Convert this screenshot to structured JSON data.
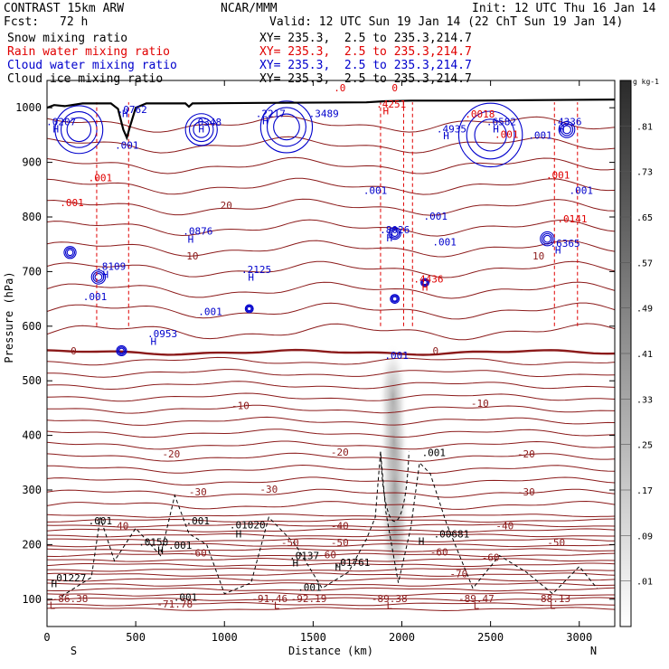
{
  "header": {
    "model": "CONTRAST 15km ARW",
    "center": "NCAR/MMM",
    "init": "Init: 12 UTC Thu 16 Jan 14",
    "fcst_label": "Fcst:",
    "fcst_value": "72 h",
    "valid": "Valid: 12 UTC Sun 19 Jan 14 (22 ChT Sun 19 Jan 14)"
  },
  "fields": [
    {
      "name": "Snow mixing ratio",
      "xy": "XY= 235.3,  2.5 to 235.3,214.7",
      "color": "#000000"
    },
    {
      "name": "Rain water mixing ratio",
      "xy": "XY= 235.3,  2.5 to 235.3,214.7",
      "color": "#e00000"
    },
    {
      "name": "Cloud water mixing ratio",
      "xy": "XY= 235.3,  2.5 to 235.3,214.7",
      "color": "#0000cc"
    },
    {
      "name": "Cloud ice mixing ratio",
      "xy": "XY= 235.3,  2.5 to 235.3,214.7",
      "color": "#000000"
    }
  ],
  "chart_data": {
    "type": "cross-section contour",
    "xlabel": "Distance (km)",
    "ylabel": "Pressure (hPa)",
    "xlim": [
      0,
      3200
    ],
    "ylim": [
      1050,
      50
    ],
    "x_ticks": [
      0,
      500,
      1000,
      1500,
      2000,
      2500,
      3000
    ],
    "y_ticks": [
      100,
      200,
      300,
      400,
      500,
      600,
      700,
      800,
      900,
      1000
    ],
    "x_end_labels": {
      "left": "S",
      "right": "N"
    },
    "temperature_contours": {
      "color": "#8b1a1a",
      "levels": [
        -70,
        -60,
        -50,
        -40,
        -30,
        -20,
        -10,
        0,
        10,
        20
      ],
      "labels": [
        {
          "text": "-70",
          "x": 2320,
          "p": 140
        },
        {
          "text": "-60",
          "x": 850,
          "p": 178
        },
        {
          "text": "-60",
          "x": 1580,
          "p": 175
        },
        {
          "text": "-60",
          "x": 2210,
          "p": 180
        },
        {
          "text": "-60",
          "x": 2500,
          "p": 170
        },
        {
          "text": "-50",
          "x": 1370,
          "p": 197
        },
        {
          "text": "-50",
          "x": 1650,
          "p": 197
        },
        {
          "text": "-50",
          "x": 2870,
          "p": 197
        },
        {
          "text": "-40",
          "x": 410,
          "p": 228
        },
        {
          "text": "-40",
          "x": 1650,
          "p": 228
        },
        {
          "text": "-40",
          "x": 2580,
          "p": 228
        },
        {
          "text": "-30",
          "x": 850,
          "p": 290
        },
        {
          "text": "-30",
          "x": 1250,
          "p": 295
        },
        {
          "text": "-30",
          "x": 2700,
          "p": 290
        },
        {
          "text": "-20",
          "x": 700,
          "p": 360
        },
        {
          "text": "-20",
          "x": 1650,
          "p": 363
        },
        {
          "text": "-20",
          "x": 2700,
          "p": 360
        },
        {
          "text": "-10",
          "x": 1090,
          "p": 448
        },
        {
          "text": "-10",
          "x": 2440,
          "p": 452
        },
        {
          "text": "0",
          "x": 150,
          "p": 548
        },
        {
          "text": "0",
          "x": 2190,
          "p": 548
        },
        {
          "text": "10",
          "x": 820,
          "p": 722
        },
        {
          "text": "10",
          "x": 2770,
          "p": 722
        },
        {
          "text": "20",
          "x": 1010,
          "p": 815
        }
      ]
    },
    "minima_labels": [
      {
        "text": "L",
        "x": 30,
        "p": 82
      },
      {
        "text": "-86.38",
        "x": 130,
        "p": 95
      },
      {
        "text": "-71.78",
        "x": 720,
        "p": 85
      },
      {
        "text": "L",
        "x": 1295,
        "p": 82
      },
      {
        "text": "-91.46",
        "x": 1255,
        "p": 95
      },
      {
        "text": "-92.19",
        "x": 1475,
        "p": 95
      },
      {
        "text": "L",
        "x": 1930,
        "p": 82
      },
      {
        "text": "-89.38",
        "x": 1930,
        "p": 95
      },
      {
        "text": "L",
        "x": 2420,
        "p": 82
      },
      {
        "text": "-89.47",
        "x": 2420,
        "p": 95
      },
      {
        "text": "L",
        "x": 2850,
        "p": 82
      },
      {
        "text": "-88.13",
        "x": 2850,
        "p": 95
      }
    ],
    "ice_labels": [
      {
        "text": ".001",
        "x": 780,
        "p": 97
      },
      {
        "text": "H",
        "x": 40,
        "p": 122
      },
      {
        "text": ".01227",
        "x": 120,
        "p": 133
      },
      {
        "text": ".001",
        "x": 1480,
        "p": 115
      },
      {
        "text": "H",
        "x": 1640,
        "p": 153
      },
      {
        "text": ".01761",
        "x": 1720,
        "p": 161
      },
      {
        "text": "H",
        "x": 640,
        "p": 183
      },
      {
        "text": ".0150",
        "x": 600,
        "p": 198
      },
      {
        "text": ".001",
        "x": 750,
        "p": 192
      },
      {
        "text": "H",
        "x": 1400,
        "p": 160
      },
      {
        "text": ".0137",
        "x": 1450,
        "p": 173
      },
      {
        "text": "H",
        "x": 2110,
        "p": 200
      },
      {
        "text": ".00681",
        "x": 2280,
        "p": 213
      },
      {
        "text": "H",
        "x": 1080,
        "p": 213
      },
      {
        "text": ".01020",
        "x": 1130,
        "p": 230
      },
      {
        "text": ".001",
        "x": 300,
        "p": 237
      },
      {
        "text": ".001",
        "x": 850,
        "p": 237
      },
      {
        "text": ".001",
        "x": 2180,
        "p": 362
      }
    ],
    "cloud_water_labels": [
      {
        "text": ".001",
        "x": 1970,
        "p": 540
      },
      {
        "text": "H",
        "x": 600,
        "p": 566
      },
      {
        "text": ".0953",
        "x": 650,
        "p": 580
      },
      {
        "text": ".001",
        "x": 920,
        "p": 620
      },
      {
        "text": ".001",
        "x": 270,
        "p": 648
      },
      {
        "text": "H",
        "x": 330,
        "p": 688
      },
      {
        "text": ".8109",
        "x": 360,
        "p": 703
      },
      {
        "text": "H",
        "x": 1150,
        "p": 683
      },
      {
        "text": ".2125",
        "x": 1180,
        "p": 697
      },
      {
        "text": "H",
        "x": 810,
        "p": 753
      },
      {
        "text": ".0876",
        "x": 850,
        "p": 768
      },
      {
        "text": "H",
        "x": 1930,
        "p": 755
      },
      {
        "text": ".8026",
        "x": 1960,
        "p": 770
      },
      {
        "text": ".001",
        "x": 2240,
        "p": 748
      },
      {
        "text": ".001",
        "x": 2190,
        "p": 795
      },
      {
        "text": ".001",
        "x": 1850,
        "p": 842
      },
      {
        "text": "H",
        "x": 2880,
        "p": 733
      },
      {
        "text": ".6365",
        "x": 2920,
        "p": 745
      },
      {
        "text": ".001",
        "x": 3010,
        "p": 842
      },
      {
        "text": ".001",
        "x": 450,
        "p": 925
      },
      {
        "text": "H",
        "x": 50,
        "p": 955
      },
      {
        "text": ".0207",
        "x": 80,
        "p": 968
      },
      {
        "text": "H",
        "x": 440,
        "p": 983
      },
      {
        "text": ".0762",
        "x": 480,
        "p": 990
      },
      {
        "text": "H",
        "x": 870,
        "p": 955
      },
      {
        "text": ".0348",
        "x": 900,
        "p": 967
      },
      {
        "text": "H",
        "x": 1230,
        "p": 970
      },
      {
        "text": ".2217",
        "x": 1260,
        "p": 983
      },
      {
        "text": ".3489",
        "x": 1560,
        "p": 983
      },
      {
        "text": "H",
        "x": 2250,
        "p": 942
      },
      {
        "text": ".4935",
        "x": 2280,
        "p": 955
      },
      {
        "text": "H",
        "x": 2530,
        "p": 955
      },
      {
        "text": ".6582",
        "x": 2560,
        "p": 968
      },
      {
        "text": ".001",
        "x": 2780,
        "p": 943
      },
      {
        "text": "H",
        "x": 2900,
        "p": 955
      },
      {
        "text": ".4336",
        "x": 2930,
        "p": 968
      }
    ],
    "rain_labels": [
      {
        "text": "H",
        "x": 2130,
        "p": 665
      },
      {
        "text": ".4436",
        "x": 2150,
        "p": 680
      },
      {
        "text": ".0141",
        "x": 2960,
        "p": 790
      },
      {
        "text": ".001",
        "x": 140,
        "p": 820
      },
      {
        "text": ".001",
        "x": 300,
        "p": 865
      },
      {
        "text": ".001",
        "x": 2880,
        "p": 870
      },
      {
        "text": "H",
        "x": 1910,
        "p": 988
      },
      {
        "text": ".4251",
        "x": 1940,
        "p": 1000
      },
      {
        "text": ".0",
        "x": 1650,
        "p": 1030
      },
      {
        "text": "0",
        "x": 1960,
        "p": 1030
      },
      {
        "text": ".0018",
        "x": 2440,
        "p": 982
      },
      {
        "text": ".001",
        "x": 2590,
        "p": 945
      }
    ]
  },
  "colorbar": {
    "unit": "g kg-1",
    "labels": [
      ".81",
      ".73",
      ".65",
      ".57",
      ".49",
      ".41",
      ".33",
      ".25",
      ".17",
      ".09",
      ".01"
    ]
  }
}
